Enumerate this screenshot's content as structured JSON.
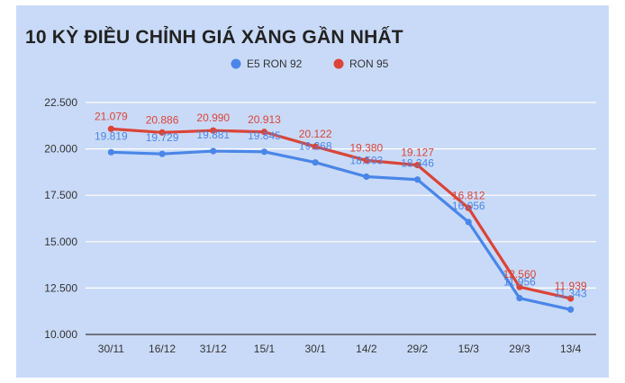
{
  "chart_data": {
    "type": "line",
    "title": "10 KỲ ĐIỀU CHỈNH GIÁ XĂNG GẦN NHẤT",
    "categories": [
      "30/11",
      "16/12",
      "31/12",
      "15/1",
      "30/1",
      "14/2",
      "29/2",
      "15/3",
      "29/3",
      "13/4"
    ],
    "series": [
      {
        "name": "E5 RON 92",
        "color": "#4a86e8",
        "values": [
          19819,
          19729,
          19881,
          19845,
          19268,
          18503,
          18346,
          16056,
          11956,
          11343
        ],
        "labels": [
          "19.819",
          "19.729",
          "19.881",
          "19.845",
          "19.268",
          "18.503",
          "18.346",
          "16.056",
          "11.956",
          "11.343"
        ]
      },
      {
        "name": "RON 95",
        "color": "#db4437",
        "values": [
          21079,
          20886,
          20990,
          20913,
          20122,
          19380,
          19127,
          16812,
          12560,
          11939
        ],
        "labels": [
          "21.079",
          "20.886",
          "20.990",
          "20.913",
          "20.122",
          "19.380",
          "19.127",
          "16.812",
          "12.560",
          "11.939"
        ]
      }
    ],
    "ylim": [
      10000,
      22500
    ],
    "yticks": [
      10000,
      12500,
      15000,
      17500,
      20000,
      22500
    ],
    "ytick_labels": [
      "10.000",
      "12.500",
      "15.000",
      "17.500",
      "20.000",
      "22.500"
    ],
    "grid": true,
    "legend_position": "top-center",
    "xlabel": "",
    "ylabel": ""
  }
}
